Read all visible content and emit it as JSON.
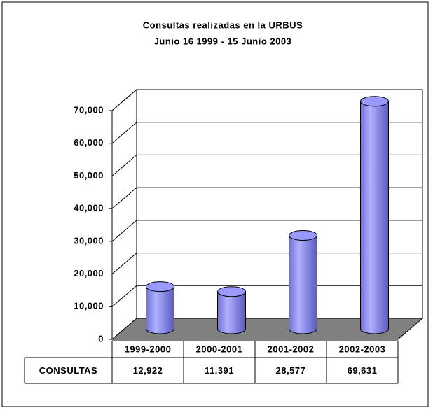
{
  "chart_data": {
    "type": "cylinder",
    "title": "Consultas realizadas en la URBUS",
    "subtitle": "Junio 16 1999 - 15 Junio 2003",
    "categories": [
      "1999-2000",
      "2000-2001",
      "2001-2002",
      "2002-2003"
    ],
    "series": [
      {
        "name": "CONSULTAS",
        "color": "#9999ff",
        "values": [
          12922,
          11391,
          28577,
          69631
        ],
        "value_labels": [
          "12,922",
          "11,391",
          "28,577",
          "69,631"
        ]
      }
    ],
    "ylim": [
      0,
      70000
    ],
    "yticks": [
      0,
      {
        "value": 10000,
        "label": "10,000"
      },
      {
        "value": 20000,
        "label": "20,000"
      },
      {
        "value": 30000,
        "label": "30,000"
      },
      {
        "value": 40000,
        "label": "40,000"
      },
      {
        "value": 50000,
        "label": "50,000"
      },
      {
        "value": 60000,
        "label": "60,000"
      },
      {
        "value": 70000,
        "label": "70,000"
      }
    ],
    "grid": true
  }
}
